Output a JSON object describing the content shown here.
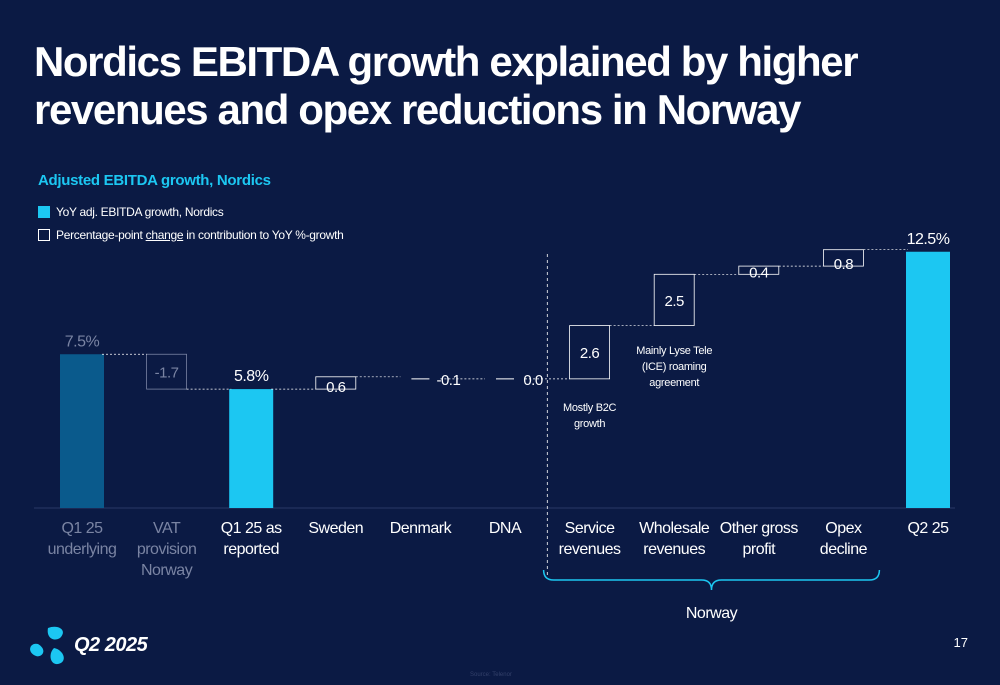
{
  "title": {
    "line1": "Nordics EBITDA growth explained by higher",
    "line2": "revenues and opex reductions in Norway"
  },
  "subtitle": "Adjusted EBITDA growth, Nordics",
  "legend": {
    "item1": "YoY adj. EBITDA growth, Nordics",
    "item2_prefix": "Percentage-point ",
    "item2_underlined": "change",
    "item2_suffix": " in contribution to YoY %-growth"
  },
  "colors": {
    "background": "#0b1a44",
    "accent": "#1cc7f2",
    "dim_bar": "#0a5a8c",
    "dim_text": "#7a84a3"
  },
  "chart_data": {
    "type": "waterfall",
    "unit": "%",
    "ylim": [
      0,
      14
    ],
    "steps": [
      {
        "category": [
          "Q1 25",
          "underlying"
        ],
        "kind": "total",
        "value": 7.5,
        "label": "7.5%",
        "dim": true
      },
      {
        "category": [
          "VAT",
          "provision",
          "Norway"
        ],
        "kind": "delta",
        "value": -1.7,
        "label": "-1.7",
        "dim": true
      },
      {
        "category": [
          "Q1 25 as",
          "reported"
        ],
        "kind": "total",
        "value": 5.8,
        "label": "5.8%"
      },
      {
        "category": [
          "Sweden"
        ],
        "kind": "delta",
        "value": 0.6,
        "label": "0.6"
      },
      {
        "category": [
          "Denmark"
        ],
        "kind": "delta",
        "value": -0.1,
        "label": "-0.1"
      },
      {
        "category": [
          "DNA"
        ],
        "kind": "delta",
        "value": 0.0,
        "label": "0.0"
      },
      {
        "category": [
          "Service",
          "revenues"
        ],
        "kind": "delta",
        "value": 2.6,
        "label": "2.6",
        "note": [
          "Mostly B2C",
          "growth"
        ]
      },
      {
        "category": [
          "Wholesale",
          "revenues"
        ],
        "kind": "delta",
        "value": 2.5,
        "label": "2.5",
        "note": [
          "Mainly Lyse Tele",
          "(ICE) roaming",
          "agreement"
        ]
      },
      {
        "category": [
          "Other gross",
          "profit"
        ],
        "kind": "delta",
        "value": 0.4,
        "label": "0.4"
      },
      {
        "category": [
          "Opex",
          "decline"
        ],
        "kind": "delta",
        "value": 0.8,
        "label": "0.8"
      },
      {
        "category": [
          "Q2 25"
        ],
        "kind": "total",
        "value": 12.5,
        "label": "12.5%"
      }
    ],
    "group_bracket": {
      "label": "Norway",
      "from_index": 6,
      "to_index": 9
    }
  },
  "footer": {
    "page_number": "17",
    "logo_text": "Q2 2025",
    "source": "Source: Telenor"
  }
}
